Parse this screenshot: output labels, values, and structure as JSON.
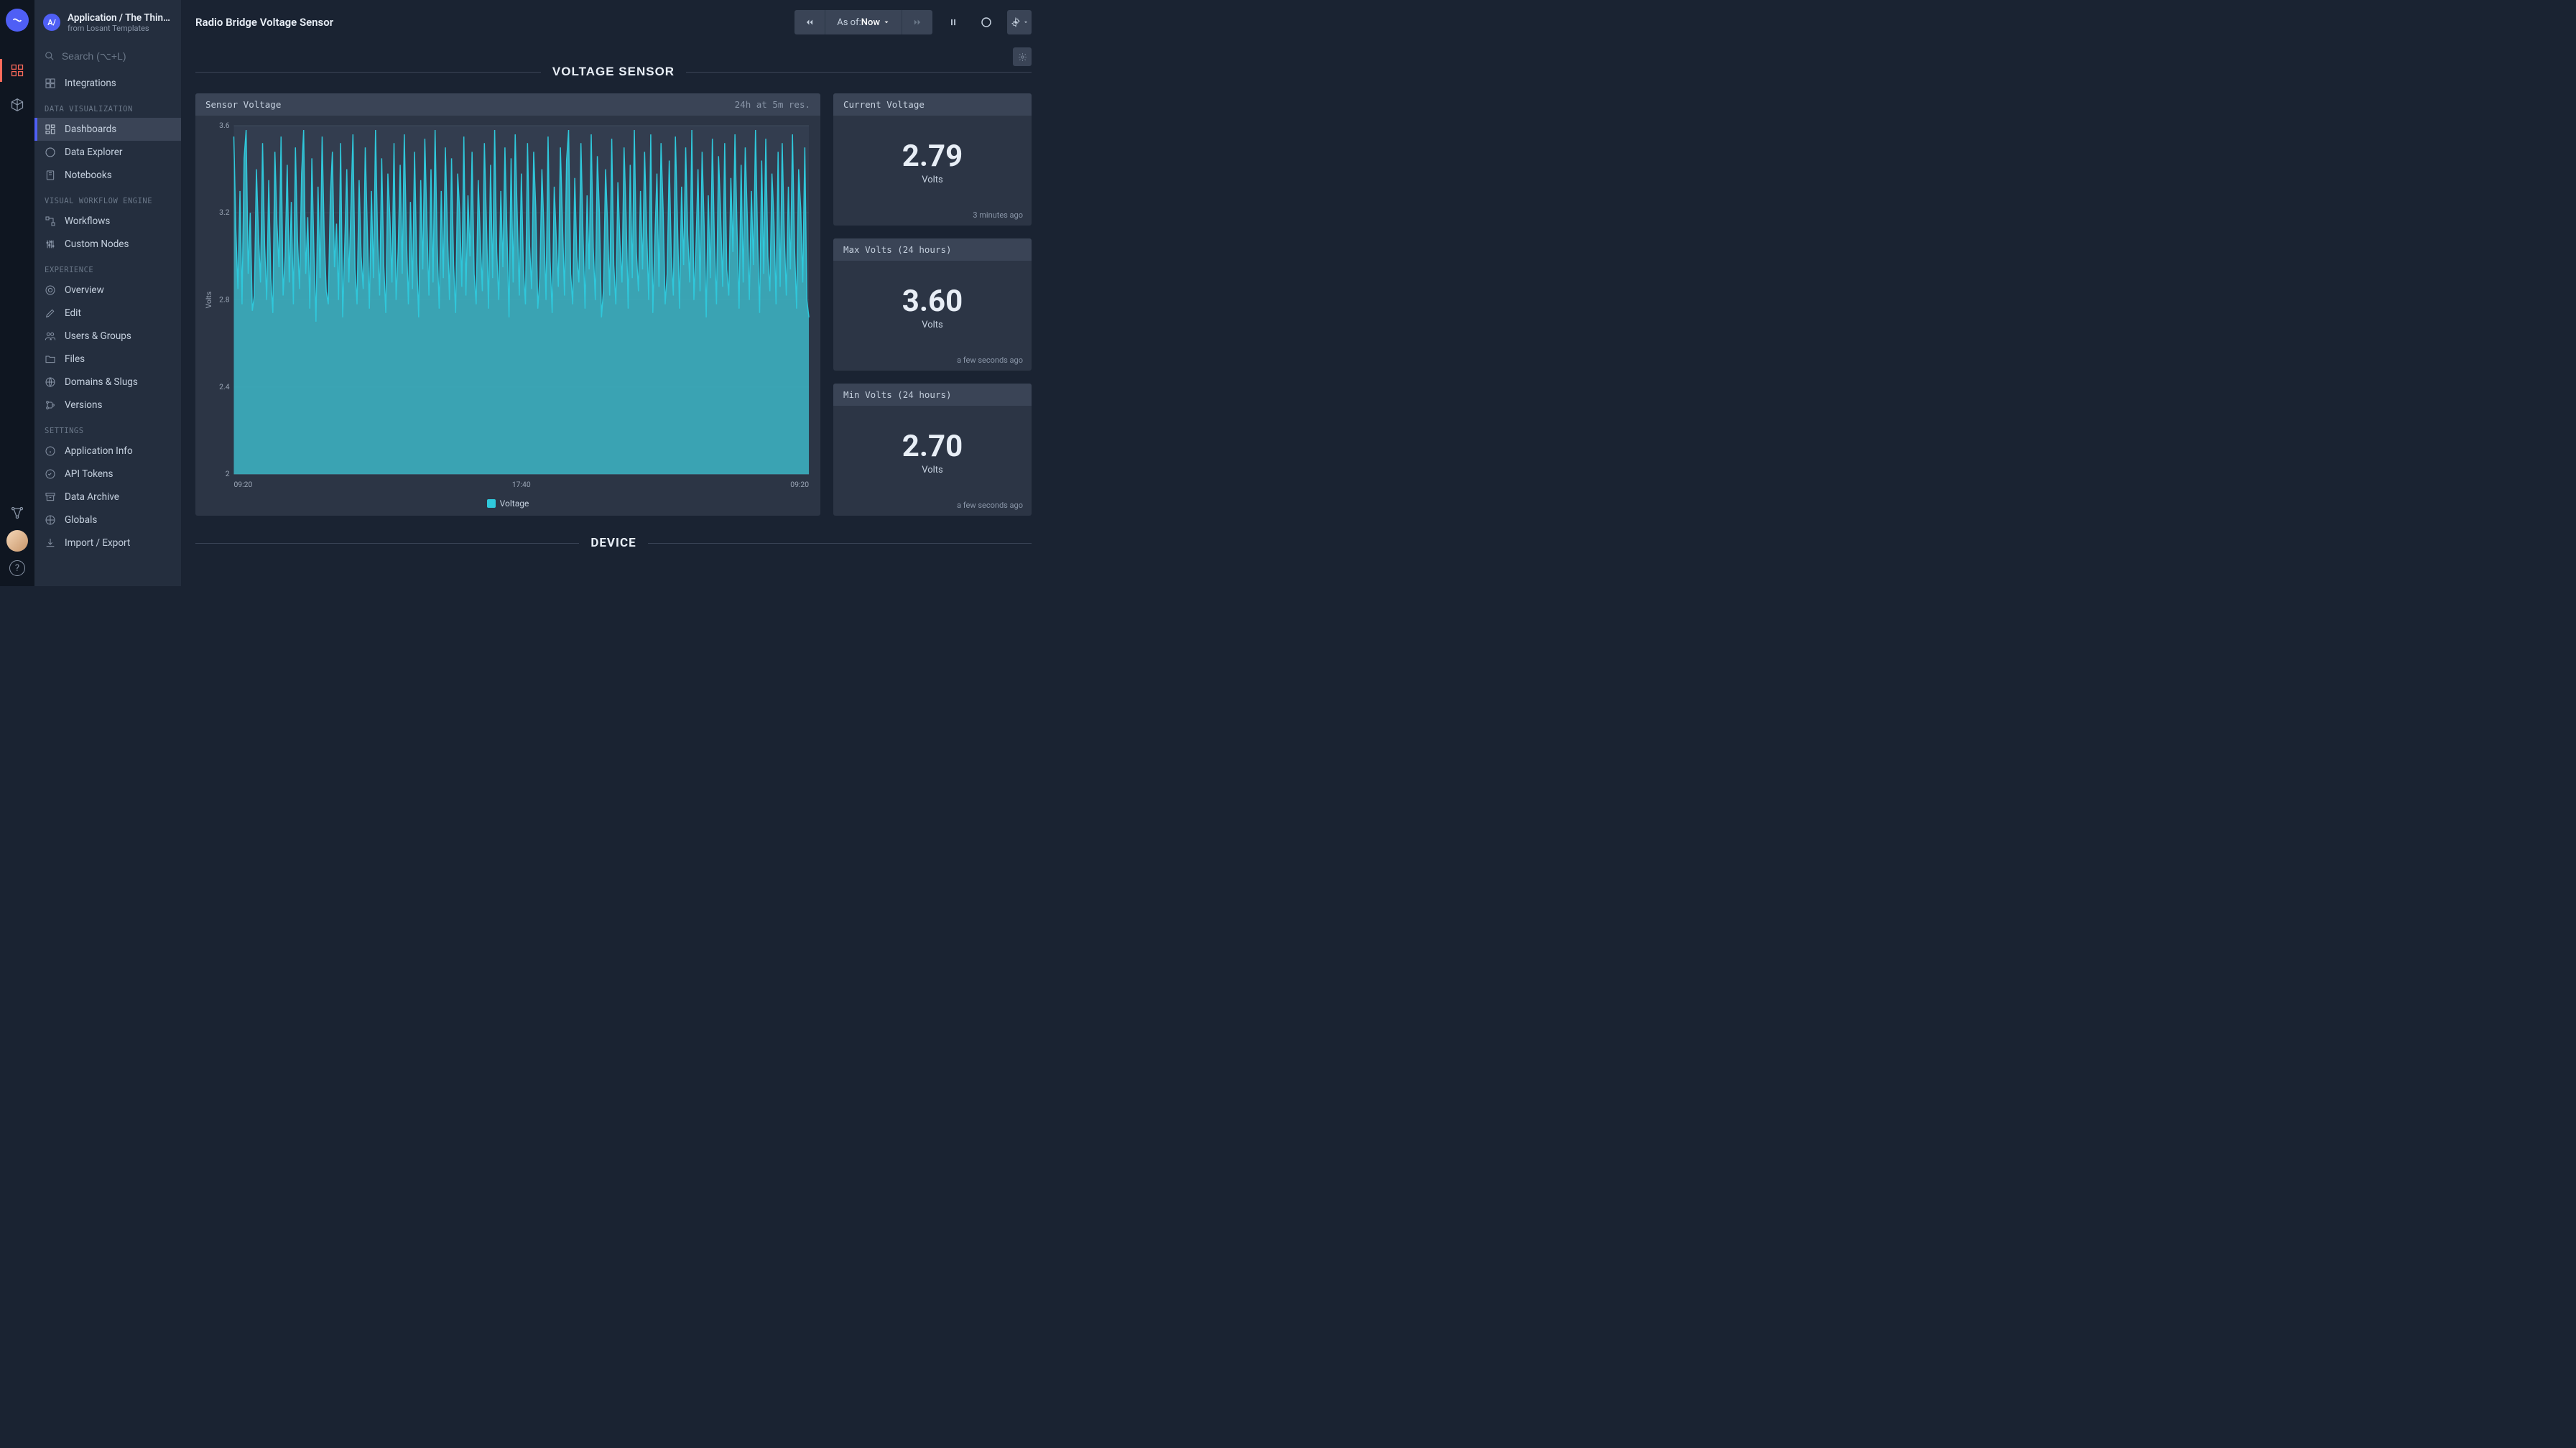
{
  "header": {
    "badge": "A/",
    "title": "Application / The Thin…",
    "subtitle": "from Losant Templates"
  },
  "search": {
    "placeholder": "Search (⌥+L)"
  },
  "nav": {
    "top": {
      "integrations": "Integrations"
    },
    "sections": {
      "dataViz": "DATA VISUALIZATION",
      "workflow": "VISUAL WORKFLOW ENGINE",
      "experience": "EXPERIENCE",
      "settings": "SETTINGS"
    },
    "items": {
      "dashboards": "Dashboards",
      "dataExplorer": "Data Explorer",
      "notebooks": "Notebooks",
      "workflows": "Workflows",
      "customNodes": "Custom Nodes",
      "overview": "Overview",
      "edit": "Edit",
      "usersGroups": "Users & Groups",
      "files": "Files",
      "domainsSlugs": "Domains & Slugs",
      "versions": "Versions",
      "appInfo": "Application Info",
      "apiTokens": "API Tokens",
      "dataArchive": "Data Archive",
      "globals": "Globals",
      "importExport": "Import / Export"
    }
  },
  "topbar": {
    "pageTitle": "Radio Bridge Voltage Sensor",
    "timeLabel": "As of: ",
    "timeValue": "Now"
  },
  "sectionTitle": "VOLTAGE SENSOR",
  "deviceTitle": "DEVICE",
  "chart": {
    "title": "Sensor Voltage",
    "meta": "24h at 5m res.",
    "type": "area",
    "series_color": "#2fc8db",
    "fill_color": "#3cb5c4",
    "fill_opacity": 0.85,
    "background": "#2c3545",
    "plot_background": "#333d4f",
    "grid_color": "#3f4a5c",
    "ylabel": "Volts",
    "ylim": [
      2.0,
      3.6
    ],
    "yticks": [
      2.0,
      2.4,
      2.8,
      3.2,
      3.6
    ],
    "xticks": [
      "09:20",
      "17:40",
      "09:20"
    ],
    "legend_label": "Voltage",
    "values": [
      3.55,
      3.12,
      2.85,
      3.3,
      2.78,
      3.45,
      3.58,
      2.92,
      3.2,
      2.75,
      2.82,
      3.4,
      3.1,
      2.88,
      3.52,
      3.05,
      2.8,
      3.35,
      2.9,
      2.74,
      3.48,
      3.15,
      2.95,
      3.55,
      2.82,
      3.0,
      3.42,
      2.88,
      3.25,
      2.78,
      3.5,
      3.08,
      2.85,
      3.38,
      3.58,
      2.92,
      3.18,
      2.76,
      3.45,
      3.02,
      2.7,
      3.32,
      2.9,
      3.55,
      3.1,
      2.84,
      2.78,
      3.28,
      3.48,
      2.95,
      3.15,
      2.8,
      3.52,
      2.72,
      3.05,
      3.4,
      2.88,
      3.22,
      3.56,
      2.94,
      2.78,
      3.35,
      3.0,
      2.85,
      3.5,
      3.12,
      2.76,
      3.3,
      2.9,
      3.58,
      3.08,
      2.82,
      3.45,
      2.96,
      2.74,
      3.38,
      3.18,
      2.88,
      3.52,
      2.8,
      3.02,
      3.42,
      2.92,
      3.56,
      3.1,
      2.78,
      3.25,
      2.85,
      3.48,
      3.0,
      2.72,
      3.35,
      2.94,
      3.54,
      3.15,
      2.82,
      3.4,
      2.88,
      3.58,
      3.05,
      2.76,
      3.3,
      2.9,
      3.5,
      3.12,
      2.8,
      3.45,
      2.96,
      2.74,
      3.38,
      3.2,
      2.86,
      3.55,
      2.82,
      3.28,
      3.0,
      3.48,
      2.92,
      2.78,
      3.35,
      3.08,
      2.84,
      3.52,
      3.15,
      2.76,
      3.42,
      2.9,
      3.58,
      3.02,
      2.8,
      3.3,
      2.95,
      3.5,
      3.1,
      2.72,
      3.45,
      2.88,
      3.56,
      3.18,
      2.82,
      3.38,
      2.94,
      2.78,
      3.52,
      3.05,
      2.85,
      3.48,
      3.22,
      2.76,
      2.9,
      3.4,
      3.12,
      2.8,
      3.55,
      2.98,
      2.74,
      3.32,
      3.08,
      2.86,
      3.5,
      3.16,
      2.82,
      3.44,
      3.58,
      2.92,
      2.78,
      3.36,
      3.0,
      2.88,
      3.52,
      3.1,
      2.76,
      3.28,
      2.94,
      3.56,
      3.04,
      2.8,
      3.46,
      3.2,
      2.72,
      2.85,
      3.4,
      3.14,
      2.82,
      3.54,
      2.96,
      2.78,
      3.34,
      3.06,
      2.88,
      3.5,
      3.18,
      2.76,
      3.42,
      2.9,
      3.58,
      3.02,
      2.84,
      3.3,
      2.94,
      3.48,
      3.12,
      2.8,
      3.56,
      2.74,
      3.08,
      3.38,
      2.86,
      3.52,
      3.22,
      2.78,
      2.92,
      3.44,
      3.0,
      2.82,
      3.55,
      3.16,
      2.76,
      3.32,
      2.96,
      3.5,
      3.1,
      2.88,
      3.58,
      2.8,
      3.04,
      3.4,
      2.84,
      3.48,
      3.14,
      2.72,
      3.28,
      2.9,
      3.54,
      3.06,
      2.78,
      3.46,
      3.2,
      2.86,
      3.52,
      2.94,
      2.82,
      3.36,
      3.02,
      3.56,
      3.12,
      2.76,
      3.42,
      2.88,
      3.5,
      3.18,
      2.8,
      3.3,
      2.96,
      3.58,
      3.08,
      2.74,
      3.44,
      2.92,
      3.54,
      3.0,
      2.84,
      3.38,
      3.16,
      2.78,
      3.48,
      2.86,
      3.52,
      3.1,
      2.82,
      3.32,
      2.94,
      3.56,
      3.04,
      2.76,
      3.4,
      3.22,
      2.88,
      3.5,
      2.8,
      2.72
    ]
  },
  "kpis": [
    {
      "title": "Current Voltage",
      "value": "2.79",
      "unit": "Volts",
      "footer": "3 minutes ago"
    },
    {
      "title": "Max Volts (24 hours)",
      "value": "3.60",
      "unit": "Volts",
      "footer": "a few seconds ago"
    },
    {
      "title": "Min Volts (24 hours)",
      "value": "2.70",
      "unit": "Volts",
      "footer": "a few seconds ago"
    }
  ],
  "colors": {
    "accent": "#4f5ff5",
    "rail_active": "#ff6b5b",
    "panel_bg": "#2c3545",
    "panel_header_bg": "#3a4456"
  }
}
